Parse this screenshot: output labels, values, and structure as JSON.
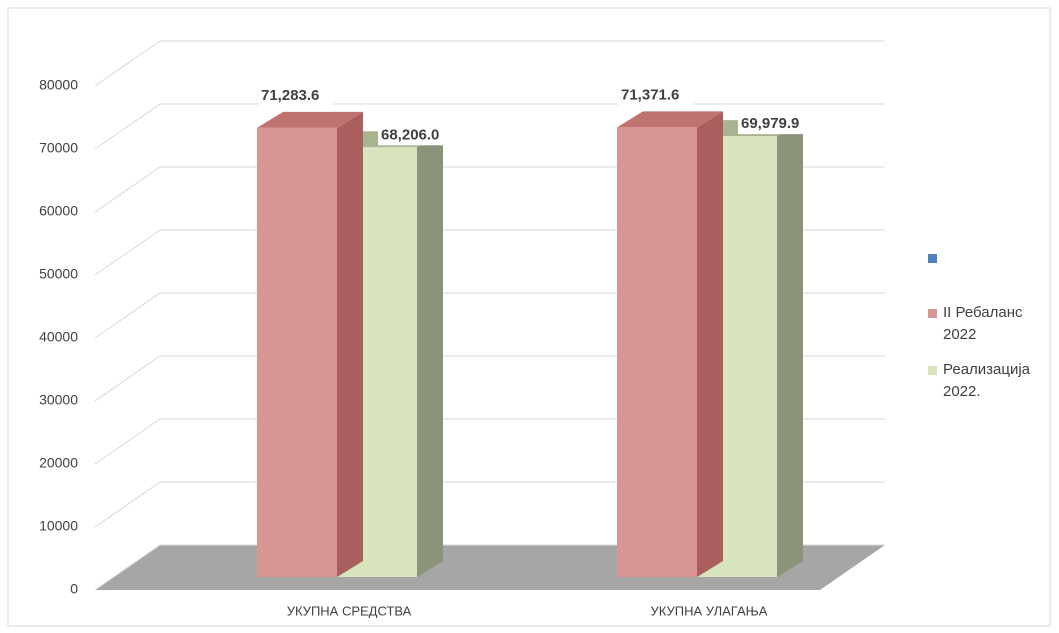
{
  "chart_data": {
    "type": "bar3d",
    "categories": [
      "УКУПНА СРЕДСТВА",
      "УКУПНА УЛАГАЊА"
    ],
    "series": [
      {
        "name": "II Ребаланс 2022",
        "color": "#d99594",
        "values": [
          71283.6,
          71371.6
        ],
        "value_labels": [
          "71,283.6",
          "71,371.6"
        ]
      },
      {
        "name": "Реализација 2022.",
        "color": "#d7e4bd",
        "values": [
          68206.0,
          69979.9
        ],
        "value_labels": [
          "68,206.0",
          "69,979.9"
        ]
      }
    ],
    "ylim": [
      0,
      80000
    ],
    "yticks": [
      0,
      10000,
      20000,
      30000,
      40000,
      50000,
      60000,
      70000,
      80000
    ],
    "grid": true
  }
}
